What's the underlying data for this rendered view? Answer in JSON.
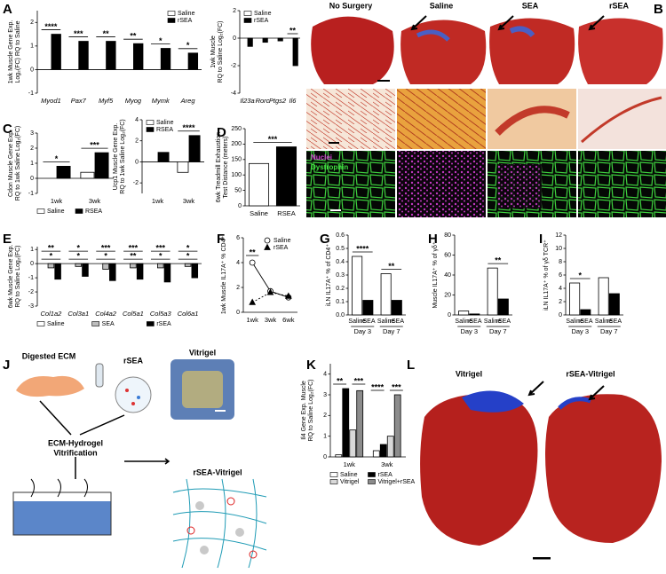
{
  "figure": {
    "letters": [
      "A",
      "B",
      "C",
      "D",
      "E",
      "F",
      "G",
      "H",
      "I",
      "J",
      "K",
      "L"
    ],
    "histology": {
      "columns": [
        "No Surgery",
        "Saline",
        "SEA",
        "rSEA"
      ],
      "stains": [
        "Nuclei",
        "Dystrophin"
      ]
    },
    "schematic": {
      "labels": [
        "Digested ECM",
        "rSEA",
        "Vitrigel"
      ],
      "process": [
        "ECM-Hydrogel",
        "Vitrification"
      ],
      "product": "rSEA-Vitrigel"
    },
    "trichrome": {
      "labels": [
        "Vitrigel",
        "rSEA-Vitrigel"
      ]
    }
  },
  "chart_data": [
    {
      "type": "bar",
      "ylabel": [
        "1wk Muscle Gene Exp.",
        "Log₂(FC) RQ to Saline"
      ],
      "italic_categories": true,
      "categories": [
        "Myod1",
        "Pax7",
        "Myf5",
        "Myog",
        "Mymk",
        "Areg"
      ],
      "series": [
        {
          "name": "Saline",
          "color": "#ffffff",
          "values": [
            0,
            0,
            0,
            0,
            0,
            0
          ]
        },
        {
          "name": "rSEA",
          "color": "#000000",
          "values": [
            1.5,
            1.2,
            1.2,
            1.1,
            0.9,
            0.7
          ]
        }
      ],
      "ylim": [
        -1,
        2.5
      ],
      "yticks": [
        -1,
        0,
        1,
        2
      ],
      "annotations": [
        "****",
        "***",
        "**",
        "**",
        "*",
        "*"
      ],
      "legend": "upper right"
    },
    {
      "type": "bar",
      "ylabel": [
        "1wk Muscle",
        "RQ to Saline Log₂(FC)"
      ],
      "italic_categories": true,
      "categories": [
        "Il23a",
        "Rorc",
        "Ptgs2",
        "Il6"
      ],
      "series": [
        {
          "name": "Saline",
          "color": "#ffffff",
          "values": [
            0,
            0,
            0,
            0
          ]
        },
        {
          "name": "rSEA",
          "color": "#000000",
          "values": [
            -0.6,
            -0.3,
            -0.2,
            -2
          ]
        }
      ],
      "ylim": [
        -4,
        2
      ],
      "yticks": [
        -4,
        -2,
        0,
        2
      ],
      "annotations": [
        null,
        null,
        null,
        "**"
      ],
      "legend": "upper left"
    },
    {
      "type": "bar",
      "ylabel": [
        "Cdon Muscle Gene Exp.",
        "RQ to 1wk Saline Log₂(FC)"
      ],
      "categories": [
        "1wk",
        "3wk"
      ],
      "series": [
        {
          "name": "Saline",
          "color": "#ffffff",
          "values": [
            0,
            0.4
          ]
        },
        {
          "name": "RSEA",
          "color": "#000000",
          "values": [
            0.8,
            1.7
          ]
        }
      ],
      "ylim": [
        -1,
        3
      ],
      "yticks": [
        -1,
        0,
        1,
        2,
        3
      ],
      "annotations": [
        "*",
        "***"
      ],
      "legend": "below"
    },
    {
      "type": "bar",
      "ylabel": [
        "Ucp1 Muscle Gene Exp.",
        "RQ to 1wk Saline Log₂(FC)"
      ],
      "categories": [
        "1wk",
        "3wk"
      ],
      "series": [
        {
          "name": "Saline",
          "color": "#ffffff",
          "values": [
            0,
            -1
          ]
        },
        {
          "name": "RSEA",
          "color": "#000000",
          "values": [
            0.9,
            2.5
          ]
        }
      ],
      "ylim": [
        -3,
        4
      ],
      "yticks": [
        -2,
        0,
        2,
        4
      ],
      "annotations": [
        null,
        "****"
      ],
      "legend": "upper left"
    },
    {
      "type": "bar",
      "ylabel": [
        "6wk Treadmill Exhaustion",
        "Test Distance (meters)"
      ],
      "categories": [
        "Saline",
        "RSEA"
      ],
      "values": [
        137,
        191
      ],
      "colors": [
        "#ffffff",
        "#000000"
      ],
      "ylim": [
        0,
        250
      ],
      "yticks": [
        0,
        50,
        100,
        150,
        200,
        250
      ],
      "annotations": [
        "***"
      ]
    },
    {
      "type": "bar",
      "ylabel": [
        "6wk Muscle Gene Exp.",
        "RQ to Saline Log₂(FC)"
      ],
      "italic_categories": true,
      "categories": [
        "Col1a2",
        "Col3a1",
        "Col4a2",
        "Col5a1",
        "Col5a3",
        "Col6a1"
      ],
      "series": [
        {
          "name": "Saline",
          "color": "#ffffff",
          "values": [
            0,
            0,
            0,
            0,
            0,
            0
          ]
        },
        {
          "name": "SEA",
          "color": "#bdbdbd",
          "values": [
            -0.3,
            -0.2,
            -0.4,
            -0.3,
            -0.3,
            -0.2
          ]
        },
        {
          "name": "rSEA",
          "color": "#000000",
          "values": [
            -1.1,
            -0.9,
            -1.2,
            -1.1,
            -1.3,
            -1.0
          ]
        }
      ],
      "ylim": [
        -3,
        1.2
      ],
      "yticks": [
        -3,
        -2,
        -1,
        0,
        1
      ],
      "annotations": [
        "**",
        "*",
        "***",
        "***",
        "***",
        "*"
      ],
      "annotations2": [
        "*",
        "*",
        "*",
        "**",
        "*",
        "*"
      ],
      "legend": "below"
    },
    {
      "type": "line",
      "ylabel": [
        "1wk Muscle IL17A⁺ % CD4⁺"
      ],
      "categories": [
        "1wk",
        "3wk",
        "6wk"
      ],
      "series": [
        {
          "name": "Saline",
          "color": "#ffffff",
          "marker": "circle",
          "values": [
            4,
            1.7,
            1.2
          ]
        },
        {
          "name": "rSEA",
          "color": "#000000",
          "marker": "triangle",
          "values": [
            0.8,
            1.6,
            1.3
          ]
        }
      ],
      "ylim": [
        0,
        6
      ],
      "yticks": [
        0,
        2,
        4,
        6
      ],
      "annotations": [
        "**",
        null,
        null
      ],
      "legend": "upper right"
    },
    {
      "type": "bar",
      "ylabel": [
        "iLN IL17A⁺ % of CD4⁺"
      ],
      "bar_labels": true,
      "categories": [
        "Day 3",
        "Day 7"
      ],
      "series": [
        {
          "name": "Saline",
          "color": "#ffffff",
          "values": [
            0.44,
            0.31
          ]
        },
        {
          "name": "rSEA",
          "color": "#000000",
          "values": [
            0.11,
            0.11
          ]
        }
      ],
      "ylim": [
        0,
        0.6
      ],
      "yticks": [
        {
          "value": 0,
          "label": "0.0"
        },
        0.1,
        0.2,
        0.3,
        0.4,
        0.5,
        0.6
      ],
      "annotations": [
        "****",
        "**"
      ]
    },
    {
      "type": "bar",
      "ylabel": [
        "Muscle IL17A⁺ % of γδ⁺"
      ],
      "bar_labels": true,
      "categories": [
        "Day 3",
        "Day 7"
      ],
      "series": [
        {
          "name": "Saline",
          "color": "#ffffff",
          "values": [
            4,
            47
          ]
        },
        {
          "name": "rSEA",
          "color": "#000000",
          "values": [
            1,
            16
          ]
        }
      ],
      "ylim": [
        0,
        80
      ],
      "yticks": [
        0,
        20,
        40,
        60,
        80
      ],
      "annotations": [
        null,
        "**"
      ]
    },
    {
      "type": "bar",
      "ylabel": [
        "iLN IL17A⁺ % of γδ TCR⁺"
      ],
      "bar_labels": true,
      "categories": [
        "Day 3",
        "Day 7"
      ],
      "series": [
        {
          "name": "Saline",
          "color": "#ffffff",
          "values": [
            4.8,
            5.6
          ]
        },
        {
          "name": "rSEA",
          "color": "#000000",
          "values": [
            0.8,
            3.2
          ]
        }
      ],
      "ylim": [
        0,
        12
      ],
      "yticks": [
        0,
        2,
        4,
        6,
        8,
        10,
        12
      ],
      "annotations": [
        "*",
        null
      ]
    },
    {
      "type": "bar",
      "ylabel": [
        "Il4 Gene Exp. Muscle",
        "RQ to Saline Log₂(FC)"
      ],
      "categories": [
        "1wk",
        "3wk"
      ],
      "series": [
        {
          "name": "Saline",
          "color": "#ffffff",
          "values": [
            0.1,
            0.3
          ]
        },
        {
          "name": "rSEA",
          "color": "#000000",
          "values": [
            3.3,
            0.6
          ]
        },
        {
          "name": "Vitrigel",
          "color": "#d9d9d9",
          "values": [
            1.3,
            1.0
          ]
        },
        {
          "name": "Vitrigel+rSEA",
          "color": "#8c8c8c",
          "values": [
            3.2,
            3.0
          ]
        }
      ],
      "ylim": [
        0,
        4.5
      ],
      "yticks": [
        0,
        1,
        2,
        3,
        4
      ],
      "annotations": [
        "**",
        "***",
        "****",
        "***"
      ],
      "legend": "below"
    }
  ]
}
